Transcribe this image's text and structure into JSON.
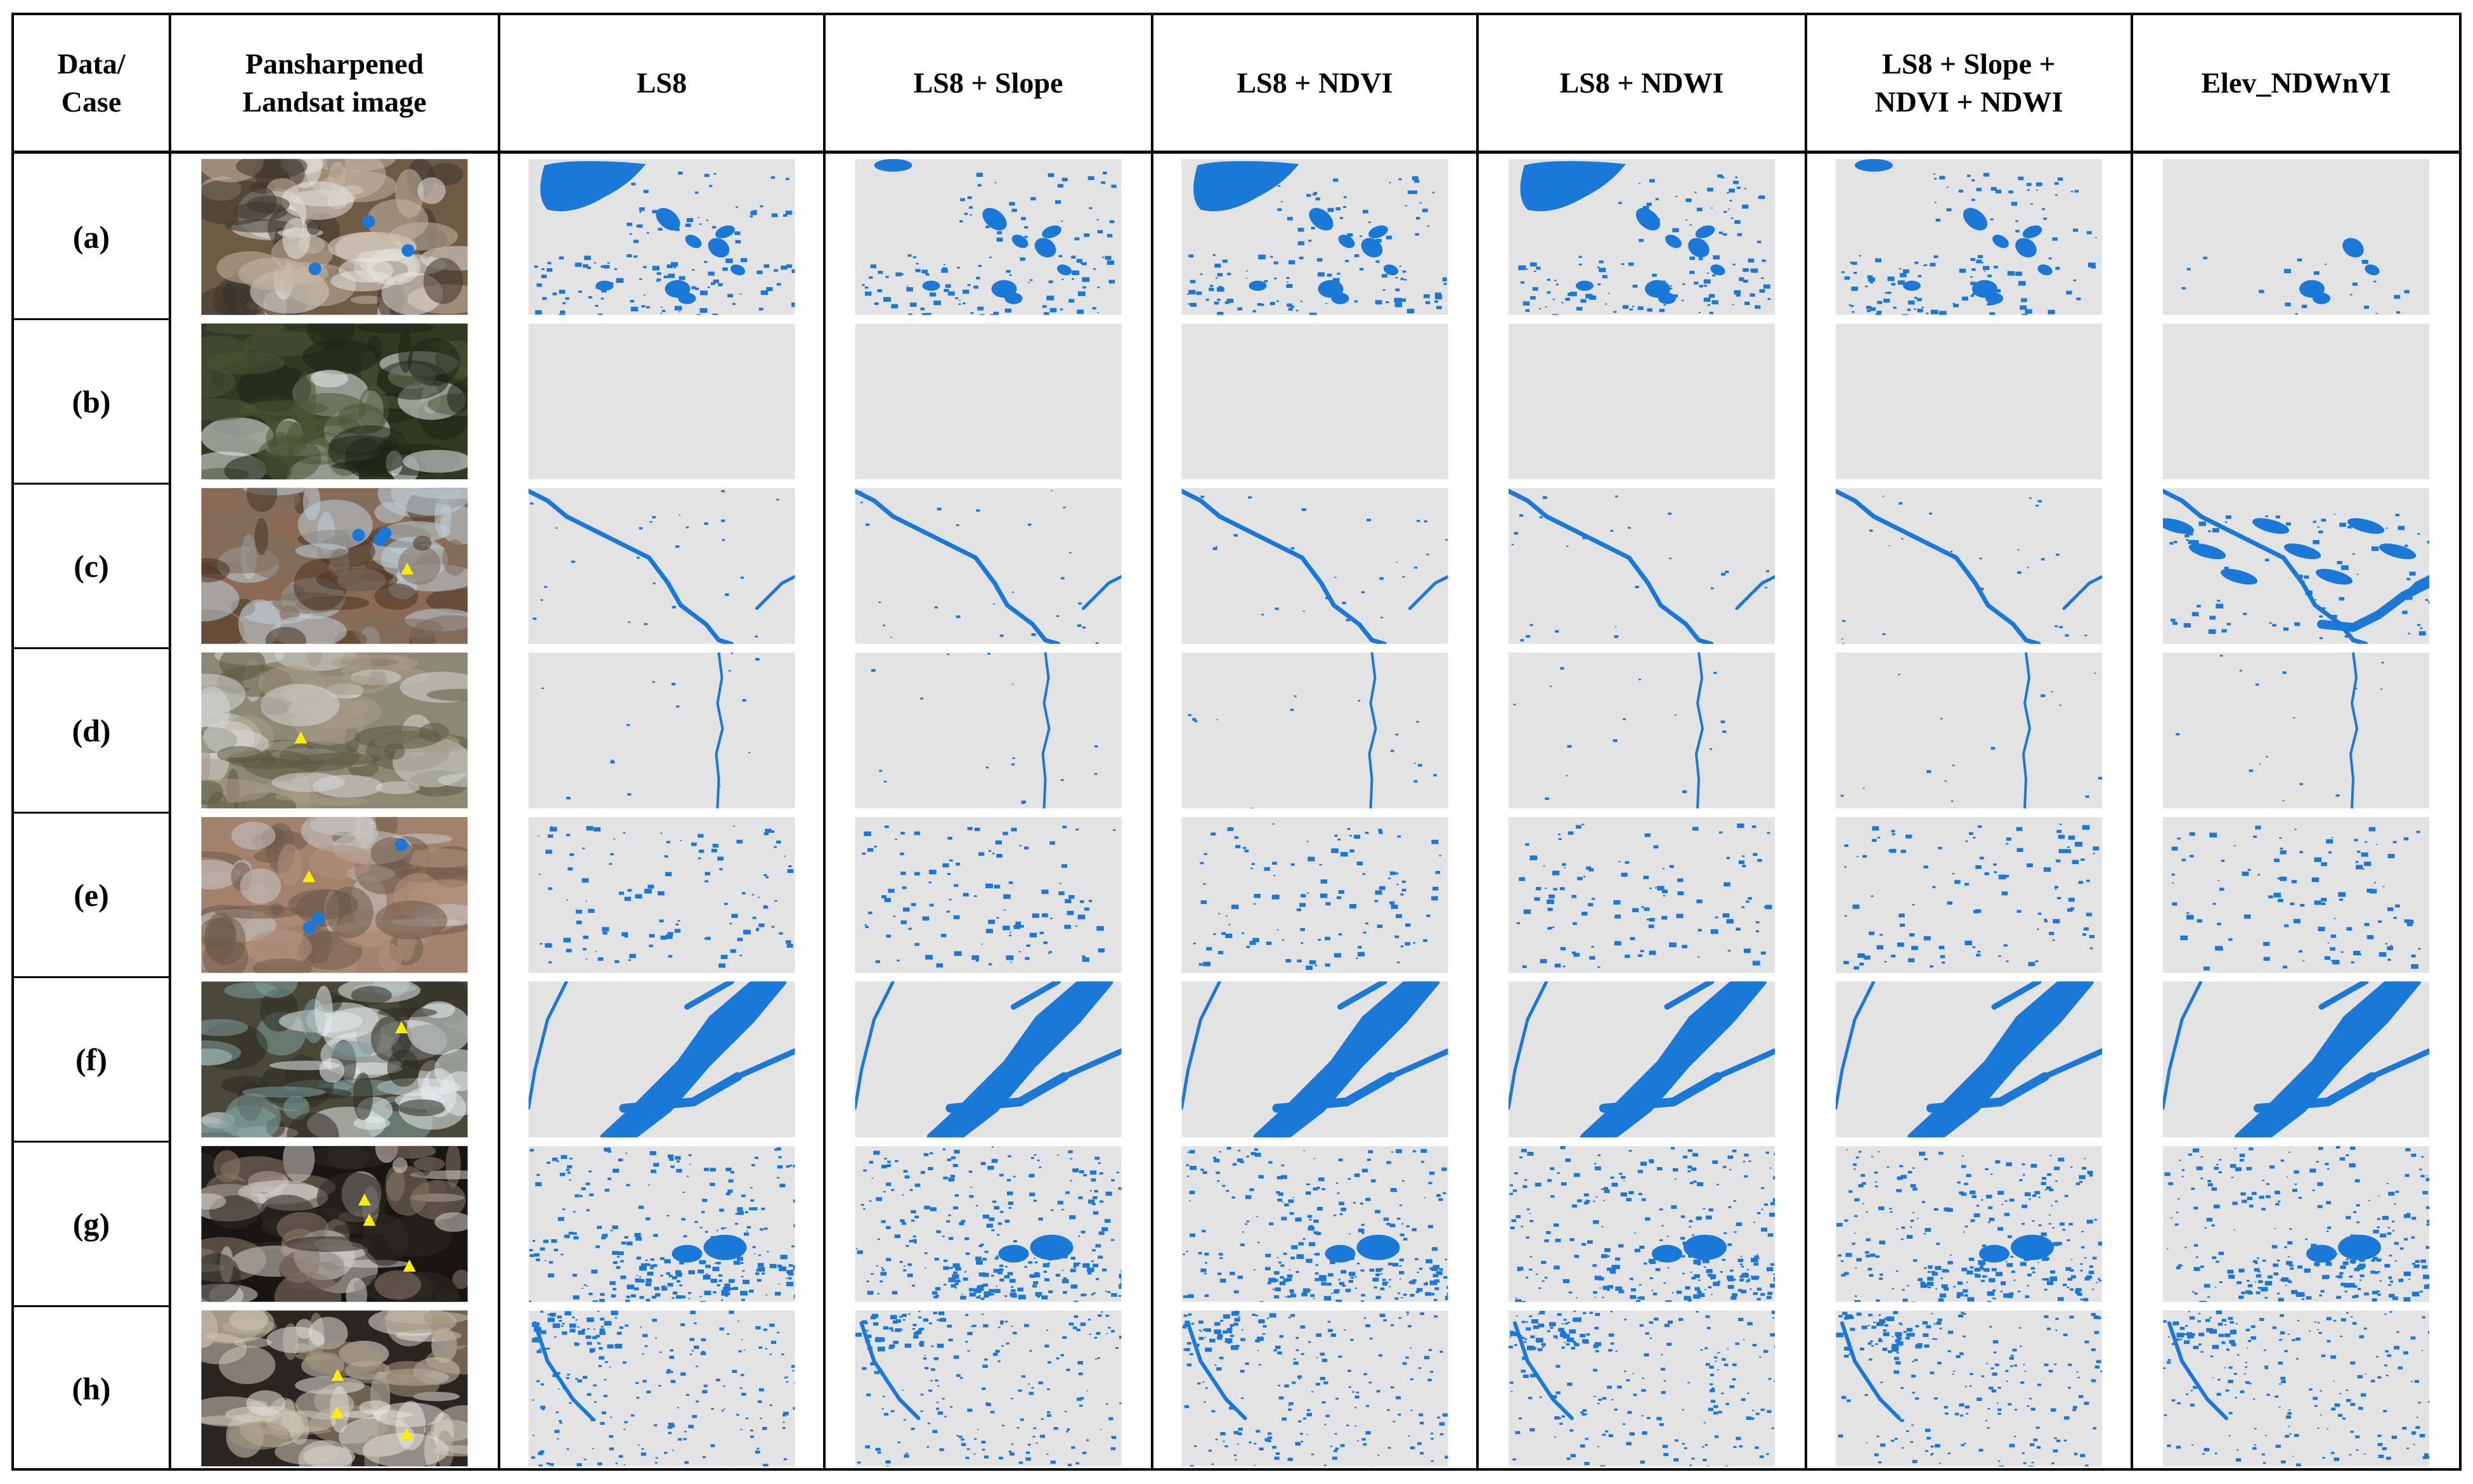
{
  "table": {
    "headers": [
      [
        "Data/",
        "Case"
      ],
      [
        "Pansharpened",
        "Landsat image"
      ],
      [
        "LS8"
      ],
      [
        "LS8 + Slope"
      ],
      [
        "LS8 + NDVI"
      ],
      [
        "LS8 + NDWI"
      ],
      [
        "LS8 + Slope +",
        "NDVI + NDWI"
      ],
      [
        "Elev_NDWnVI"
      ]
    ],
    "rows": [
      "(a)",
      "(b)",
      "(c)",
      "(d)",
      "(e)",
      "(f)",
      "(g)",
      "(h)"
    ]
  },
  "map_images": {
    "row_types": [
      "lakes",
      "empty",
      "river",
      "thinriver",
      "dots",
      "braided",
      "glacier",
      "glacier2"
    ],
    "water_color": "#1a78d8",
    "background_color": "#e3e3e3",
    "marker_color": "#ffee00",
    "point_marker_color": "#1a78d8"
  },
  "colors": {
    "grid": "#000000",
    "water": "#1a78d8",
    "map_bg": "#e3e3e3",
    "marker_yellow": "#ffee00"
  }
}
